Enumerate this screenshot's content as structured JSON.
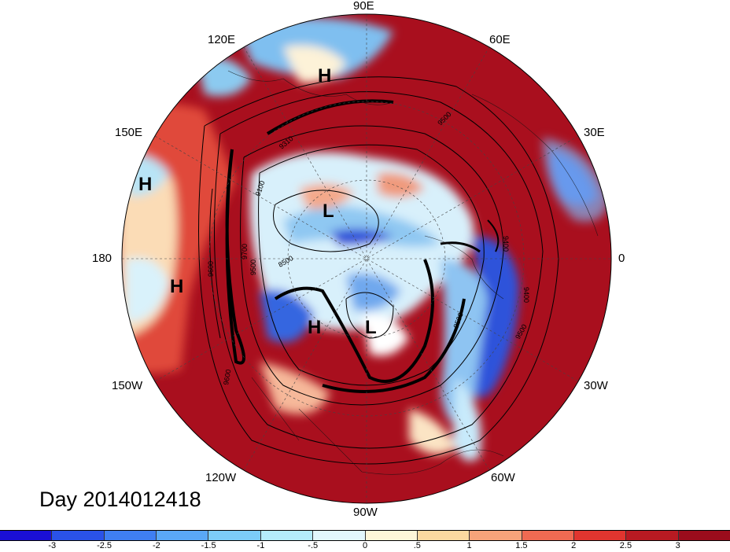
{
  "map": {
    "day_label": "Day 2014012418",
    "longitude_labels": {
      "lon_90e": "90E",
      "lon_60e": "60E",
      "lon_120e": "120E",
      "lon_30e": "30E",
      "lon_150e": "150E",
      "lon_0": "0",
      "lon_180": "180",
      "lon_30w": "30W",
      "lon_150w": "150W",
      "lon_60w": "60W",
      "lon_120w": "120W",
      "lon_90w": "90W"
    },
    "pressure_centers": [
      "H",
      "H",
      "H",
      "L",
      "L",
      "H"
    ],
    "contour_labels": [
      "9600",
      "9500",
      "9100",
      "8500",
      "9310",
      "9700",
      "9500",
      "9400",
      "9500",
      "9600",
      "9400",
      "9500"
    ]
  },
  "colorbar": {
    "ticks": [
      "-3",
      "-2.5",
      "-2",
      "-1.5",
      "-1",
      "-.5",
      "0",
      ".5",
      "1",
      "1.5",
      "2",
      "2.5",
      "3"
    ],
    "colors": [
      "#1a0fd6",
      "#2a52e8",
      "#3f7ff2",
      "#5aa8f6",
      "#7cccf8",
      "#b4ecfb",
      "#e2f7fc",
      "#fdf6d8",
      "#fbd9a0",
      "#f6a37a",
      "#ef6a52",
      "#e0352f",
      "#b81a22",
      "#9a0c1c"
    ]
  }
}
